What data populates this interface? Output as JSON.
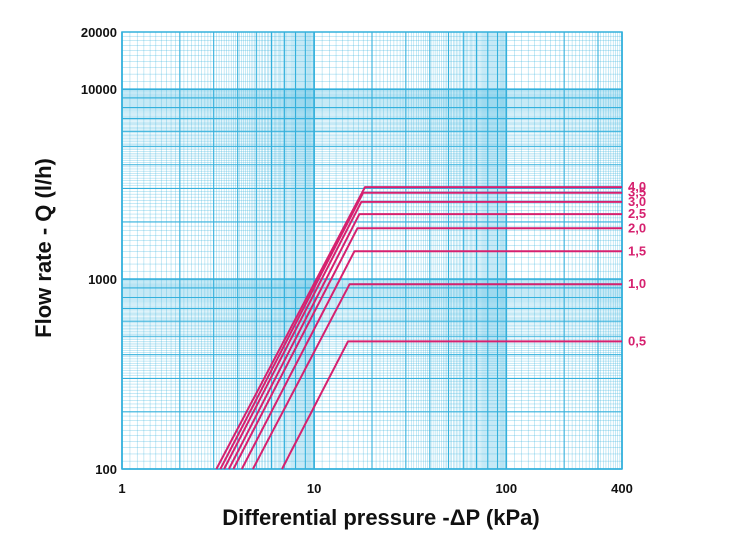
{
  "colors": {
    "grid": "#33b0dc",
    "series": "#d6216f",
    "text": "#111111"
  },
  "chart_data": {
    "type": "line",
    "title": "",
    "xlabel": "Differential pressure -ΔP (kPa)",
    "ylabel": "Flow rate - Q (l/h)",
    "xscale": "log",
    "yscale": "log",
    "xlim": [
      1,
      400
    ],
    "ylim": [
      100,
      20000
    ],
    "grid": true,
    "legend": "series labels at right end of curves",
    "x_ticks": [
      {
        "value": 1,
        "label": "1"
      },
      {
        "value": 10,
        "label": "10"
      },
      {
        "value": 100,
        "label": "100"
      },
      {
        "value": 400,
        "label": "400"
      }
    ],
    "y_ticks": [
      {
        "value": 100,
        "label": "100"
      },
      {
        "value": 1000,
        "label": "1000"
      },
      {
        "value": 10000,
        "label": "10000"
      },
      {
        "value": 20000,
        "label": "20000"
      }
    ],
    "series": [
      {
        "name": "0,5",
        "points": [
          [
            6.8,
            100
          ],
          [
            15,
            470
          ],
          [
            400,
            470
          ]
        ]
      },
      {
        "name": "1,0",
        "points": [
          [
            4.8,
            100
          ],
          [
            15.3,
            940
          ],
          [
            400,
            940
          ]
        ]
      },
      {
        "name": "1,5",
        "points": [
          [
            4.2,
            100
          ],
          [
            16.2,
            1400
          ],
          [
            400,
            1400
          ]
        ]
      },
      {
        "name": "2,0",
        "points": [
          [
            3.8,
            100
          ],
          [
            16.8,
            1850
          ],
          [
            400,
            1850
          ]
        ]
      },
      {
        "name": "2,5",
        "points": [
          [
            3.6,
            100
          ],
          [
            17.2,
            2200
          ],
          [
            400,
            2200
          ]
        ]
      },
      {
        "name": "3,0",
        "points": [
          [
            3.4,
            100
          ],
          [
            17.6,
            2550
          ],
          [
            400,
            2550
          ]
        ]
      },
      {
        "name": "3,5",
        "points": [
          [
            3.25,
            100
          ],
          [
            18,
            2850
          ],
          [
            400,
            2850
          ]
        ]
      },
      {
        "name": "4,0",
        "points": [
          [
            3.1,
            100
          ],
          [
            18.4,
            3050
          ],
          [
            400,
            3050
          ]
        ]
      }
    ]
  }
}
